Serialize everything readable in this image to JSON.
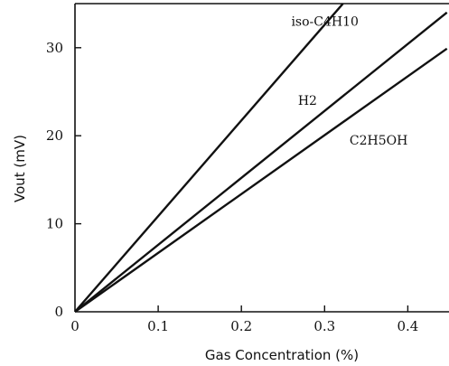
{
  "chart_data": {
    "type": "line",
    "xlabel": "Gas Concentration (%)",
    "ylabel": "Vout (mV)",
    "xlim": [
      0,
      0.44
    ],
    "ylim": [
      0,
      35
    ],
    "xticks": [
      0,
      0.1,
      0.2,
      0.3,
      0.4
    ],
    "xtick_labels": [
      "0",
      "0.1",
      "0.2",
      "0.3",
      "0.4"
    ],
    "yticks": [
      0,
      10,
      20,
      30
    ],
    "ytick_labels": [
      "0",
      "10",
      "20",
      "30"
    ],
    "grid": false,
    "legend": "none",
    "series": [
      {
        "name": "iso-C4H10",
        "x": [
          0,
          0.322
        ],
        "y": [
          0,
          35
        ]
      },
      {
        "name": "H2",
        "x": [
          0,
          0.447
        ],
        "y": [
          0,
          34
        ]
      },
      {
        "name": "C2H5OH",
        "x": [
          0,
          0.447
        ],
        "y": [
          0,
          29.9
        ]
      }
    ],
    "annotations": [
      {
        "text": "iso-C4H10",
        "x": 0.26,
        "y": 32.5
      },
      {
        "text": "H2",
        "x": 0.268,
        "y": 23.5
      },
      {
        "text": "C2H5OH",
        "x": 0.33,
        "y": 19.0
      }
    ],
    "line_color": "#111111"
  }
}
